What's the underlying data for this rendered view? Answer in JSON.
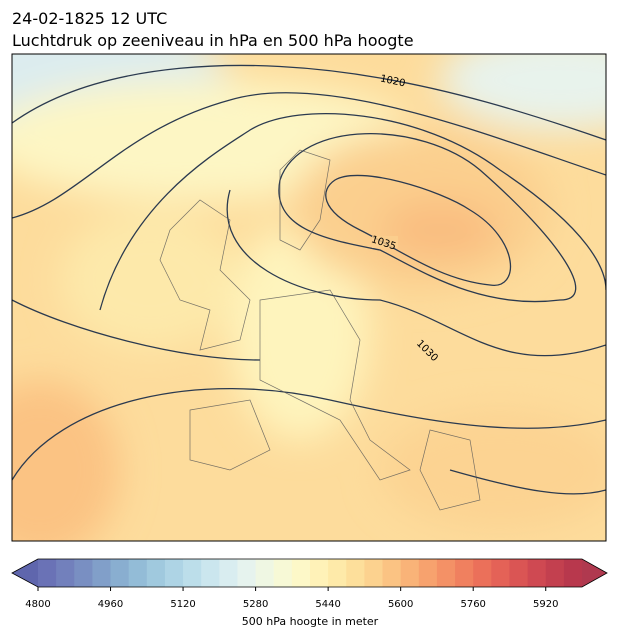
{
  "header": {
    "title": [
      "24-02-1825 12 UTC",
      "Luchtdruk op zeeniveau in hPa en 500 hPa hoogte"
    ]
  },
  "map": {
    "contour_labels": [
      1020,
      1035,
      1030
    ]
  },
  "colorbar": {
    "range": [
      4800,
      6000
    ],
    "ticks": [
      4800,
      4960,
      5120,
      5280,
      5440,
      5600,
      5760,
      5920
    ],
    "label": "500 hPa hoogte in meter",
    "under_color": "#5f66ad",
    "over_color": "#b0394f",
    "colors": [
      "#6a72b6",
      "#7280bc",
      "#798fc2",
      "#819fc9",
      "#89aed0",
      "#93bcd7",
      "#a0c9de",
      "#aed4e5",
      "#bcdeea",
      "#cbe6ee",
      "#d9edf0",
      "#e6f3ee",
      "#eff7e3",
      "#f7f9d6",
      "#fdf8c8",
      "#fff2b8",
      "#feeaa9",
      "#fddf9b",
      "#fcd28f",
      "#fbc383",
      "#f9b378",
      "#f7a26e",
      "#f49166",
      "#f0805f",
      "#eb705a",
      "#e46257",
      "#da5554",
      "#cf4952",
      "#c3404f",
      "#b8384d"
    ]
  }
}
